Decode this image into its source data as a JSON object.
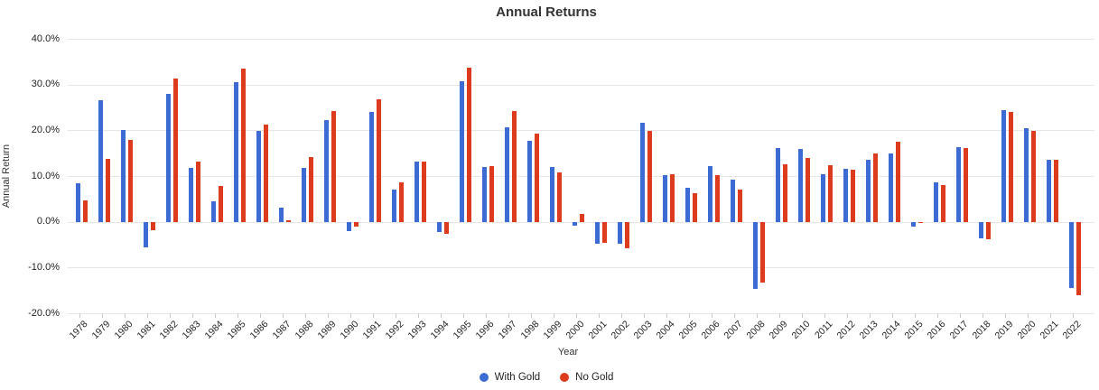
{
  "chart": {
    "title": "Annual Returns",
    "x_axis_title": "Year",
    "y_axis_title": "Annual Return"
  },
  "chart_data": {
    "type": "bar",
    "title": "Annual Returns",
    "xlabel": "Year",
    "ylabel": "Annual Return",
    "ylim": [
      -20,
      40
    ],
    "grid": true,
    "legend_position": "bottom",
    "y_ticks": [
      {
        "value": 40,
        "label": "40.0%"
      },
      {
        "value": 30,
        "label": "30.0%"
      },
      {
        "value": 20,
        "label": "20.0%"
      },
      {
        "value": 10,
        "label": "10.0%"
      },
      {
        "value": 0,
        "label": "0.0%"
      },
      {
        "value": -10,
        "label": "-10.0%"
      },
      {
        "value": -20,
        "label": "-20.0%"
      }
    ],
    "categories": [
      "1978",
      "1979",
      "1980",
      "1981",
      "1982",
      "1983",
      "1984",
      "1985",
      "1986",
      "1987",
      "1988",
      "1989",
      "1990",
      "1991",
      "1992",
      "1993",
      "1994",
      "1995",
      "1996",
      "1997",
      "1998",
      "1999",
      "2000",
      "2001",
      "2002",
      "2003",
      "2004",
      "2005",
      "2006",
      "2007",
      "2008",
      "2009",
      "2010",
      "2011",
      "2012",
      "2013",
      "2014",
      "2015",
      "2016",
      "2017",
      "2018",
      "2019",
      "2020",
      "2021",
      "2022"
    ],
    "series": [
      {
        "name": "With Gold",
        "color": "#3d6bd4",
        "values": [
          8.5,
          26.6,
          20.0,
          -5.5,
          27.9,
          11.8,
          4.4,
          30.5,
          19.9,
          3.1,
          11.7,
          22.2,
          -2.0,
          24.0,
          7.1,
          13.2,
          -2.3,
          30.7,
          12.0,
          20.7,
          17.8,
          11.9,
          -0.9,
          -4.9,
          -4.8,
          21.7,
          10.3,
          7.5,
          12.1,
          9.2,
          -14.6,
          16.1,
          16.0,
          10.5,
          11.5,
          13.6,
          14.9,
          -1.0,
          8.7,
          16.3,
          -3.6,
          24.4,
          20.4,
          13.6,
          -14.5
        ]
      },
      {
        "name": "No Gold",
        "color": "#dc3b1e",
        "values": [
          4.6,
          13.7,
          17.9,
          -1.9,
          31.3,
          13.2,
          7.9,
          33.5,
          21.2,
          0.4,
          14.1,
          24.3,
          -1.0,
          26.8,
          8.6,
          13.2,
          -2.6,
          33.6,
          12.2,
          24.3,
          19.2,
          10.8,
          1.8,
          -4.6,
          -5.7,
          19.9,
          10.5,
          6.3,
          10.2,
          7.1,
          -13.2,
          12.5,
          13.9,
          12.3,
          11.4,
          15.0,
          17.6,
          -0.3,
          8.1,
          16.1,
          -3.8,
          24.1,
          19.9,
          13.6,
          -16.0
        ]
      }
    ]
  }
}
